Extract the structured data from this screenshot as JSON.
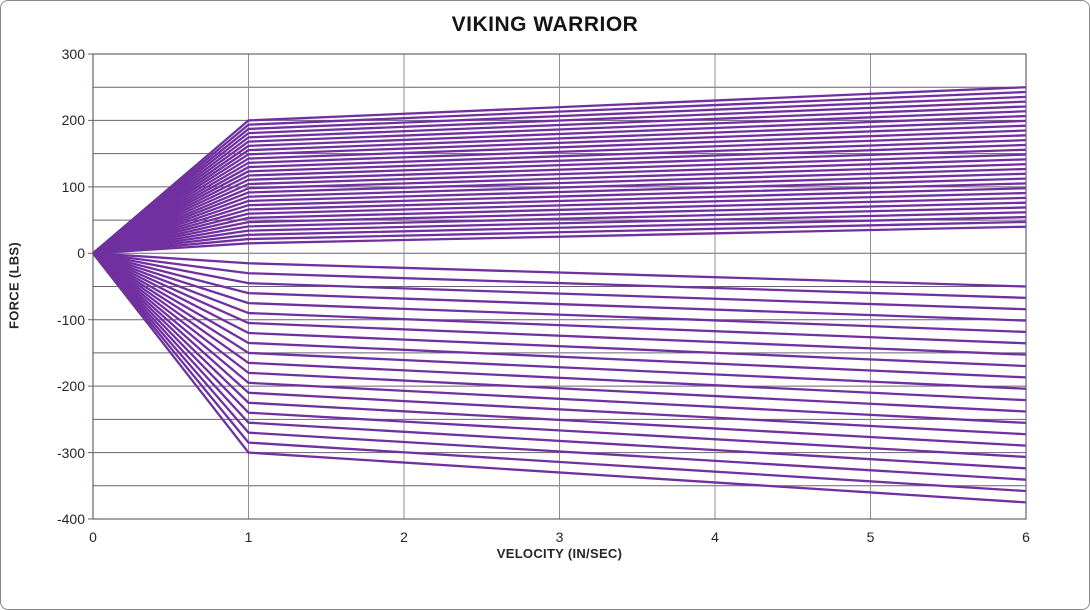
{
  "window": {
    "background": "#ffffff",
    "frame_border_color": "#8a8a8a"
  },
  "chart_data": {
    "type": "line",
    "title": "VIKING WARRIOR",
    "xlabel": "VELOCITY (IN/SEC)",
    "ylabel": "FORCE (LBS)",
    "xlim": [
      0,
      6
    ],
    "ylim": [
      -400,
      300
    ],
    "x_ticks": [
      "0",
      "1",
      "2",
      "3",
      "4",
      "5",
      "6"
    ],
    "y_ticks": [
      "300",
      "200",
      "100",
      "0",
      "-100",
      "-200",
      "-300",
      "-400"
    ],
    "grid": {
      "y_minor_step": 50,
      "x_step": 1,
      "horizontal_color": "#6b5f75",
      "vertical_color": "#948ba0"
    },
    "legend": "none",
    "line_color": "#7030A0",
    "line_width": 2.3,
    "model_note": "Damper dyno fan chart: every curve is piecewise linear through (0,0), (1, force_at_1_inps) and (6, force_at_6_inps).",
    "compression_series": {
      "count": 30,
      "force_at_1_inps": [
        200,
        193.6,
        187.2,
        180.9,
        174.5,
        168.1,
        161.7,
        155.3,
        149.0,
        142.6,
        136.2,
        129.8,
        123.4,
        117.1,
        110.7,
        104.3,
        97.9,
        91.6,
        85.2,
        78.8,
        72.4,
        66.0,
        59.7,
        53.3,
        46.9,
        40.5,
        34.1,
        27.8,
        21.4,
        15
      ],
      "force_at_6_inps": [
        250,
        242.8,
        235.5,
        228.3,
        221.0,
        213.8,
        206.6,
        199.3,
        192.1,
        184.8,
        177.6,
        170.3,
        163.1,
        155.9,
        148.6,
        141.4,
        134.1,
        126.9,
        119.7,
        112.4,
        105.2,
        97.9,
        90.7,
        83.4,
        76.2,
        69.0,
        61.7,
        54.5,
        47.2,
        40
      ]
    },
    "rebound_series": {
      "count": 20,
      "force_at_1_inps": [
        -15,
        -30,
        -45,
        -60,
        -75,
        -90,
        -105,
        -120,
        -135,
        -150,
        -165,
        -180,
        -195,
        -210,
        -225,
        -240,
        -255,
        -270,
        -285,
        -300
      ],
      "force_at_6_inps": [
        -50,
        -67.1,
        -84.2,
        -101.3,
        -118.4,
        -135.5,
        -152.6,
        -169.7,
        -186.8,
        -203.9,
        -221.1,
        -238.2,
        -255.3,
        -272.4,
        -289.5,
        -306.6,
        -323.7,
        -340.8,
        -357.9,
        -375
      ]
    }
  }
}
